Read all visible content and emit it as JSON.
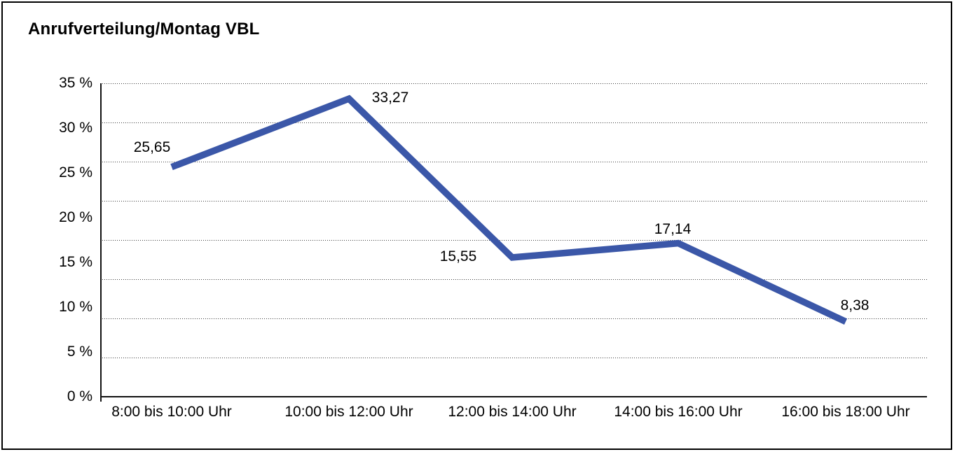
{
  "page": {
    "title": "Anrufverteilung/Montag VBL"
  },
  "chart_data": {
    "type": "line",
    "title": "Anrufverteilung/Montag VBL",
    "categories": [
      "8:00 bis 10:00 Uhr",
      "10:00 bis 12:00 Uhr",
      "12:00 bis 14:00 Uhr",
      "14:00 bis 16:00 Uhr",
      "16:00 bis 18:00 Uhr"
    ],
    "values": [
      25.65,
      33.27,
      15.55,
      17.14,
      8.38
    ],
    "value_labels": [
      "25,65",
      "33,27",
      "15,55",
      "17,14",
      "8,38"
    ],
    "unit": "%",
    "xlabel": "",
    "ylabel": "",
    "ylim": [
      0,
      35
    ],
    "y_ticks": [
      {
        "value": 0,
        "label": "0 %"
      },
      {
        "value": 5,
        "label": "5 %"
      },
      {
        "value": 10,
        "label": "10 %"
      },
      {
        "value": 15,
        "label": "15 %"
      },
      {
        "value": 20,
        "label": "20 %"
      },
      {
        "value": 25,
        "label": "25 %"
      },
      {
        "value": 30,
        "label": "30 %"
      },
      {
        "value": 35,
        "label": "35 %"
      }
    ],
    "grid": "horizontal-dotted",
    "legend": "none",
    "line_color": "#3B57A8",
    "axis_color": "#111111",
    "gridline_color": "#3c3c3c"
  }
}
